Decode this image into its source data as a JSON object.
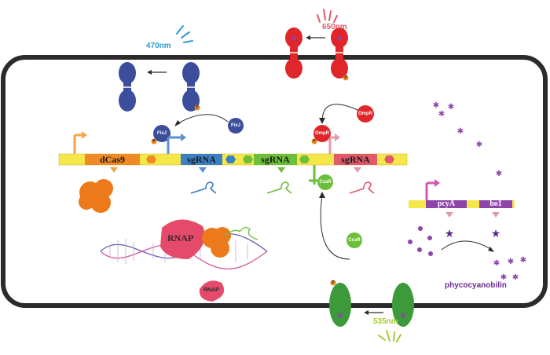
{
  "light": {
    "blue_nm": "470nm",
    "red_nm": "650nm",
    "green_nm": "535nm",
    "colors": {
      "blue": "#2a9ad6",
      "red": "#e05a6a",
      "green": "#a6c93a"
    }
  },
  "proteins": {
    "fixj": "FixJ",
    "ompr": "OmpR",
    "ccar": "CcaR",
    "rnap": "RNAP",
    "phospho": "P"
  },
  "dna_top": {
    "genes": [
      "dCas9",
      "sgRNA",
      "sgRNA",
      "sgRNA"
    ],
    "colors": {
      "backbone": "#f5e74a",
      "dcas9": "#f08a24",
      "sgrna1": "#3c7fc4",
      "sgrna2": "#6cbf3a",
      "sgrna3": "#e05a6a"
    }
  },
  "dna_side": {
    "genes": [
      "pcyA",
      "ho1"
    ],
    "color": "#8e44a8"
  },
  "metabolite": "phycocyanobilin",
  "icons": [
    "blue-light-icon",
    "red-light-icon",
    "green-light-icon",
    "promoter-arrow-icon",
    "sgrna-hairpin-icon",
    "dcas9-blob-icon",
    "star-icon"
  ]
}
